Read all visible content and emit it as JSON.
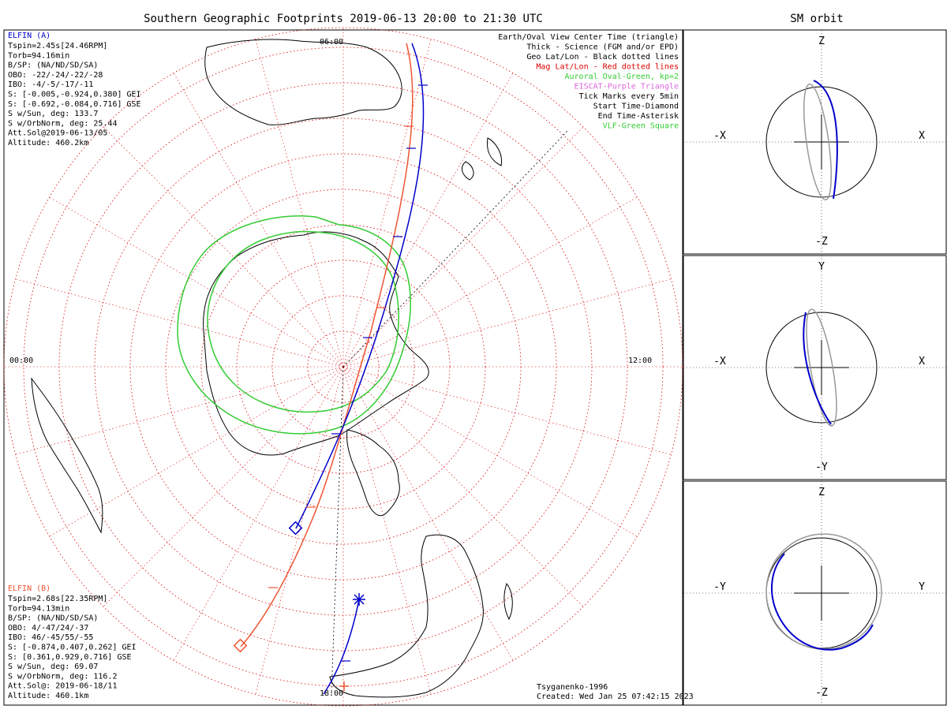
{
  "title": "Southern Geographic Footprints 2019-06-13 20:00 to 21:30 UTC",
  "right_title": "SM orbit",
  "map": {
    "mlt_labels": {
      "top": "06:00",
      "left": "00:00",
      "right": "12:00",
      "bottom": "18:00"
    }
  },
  "elfin_a": {
    "header": "ELFIN (A)",
    "lines": [
      "Tspin=2.45s[24.46RPM]",
      "Torb=94.16min",
      "B/SP: (NA/ND/SD/SA)",
      "OBO: -22/-24/-22/-28",
      "IBO: -4/-5/-17/-11",
      "S: [-0.005,-0.924,0.380] GEI",
      "S: [-0.692,-0.084,0.716] GSE",
      "S w/Sun, deg: 133.7",
      "S w/OrbNorm, deg: 25.44",
      "Att.Sol@2019-06-13/05",
      "Altitude: 460.2km"
    ],
    "color": "#0000cc"
  },
  "elfin_b": {
    "header": "ELFIN (B)",
    "lines": [
      "Tspin=2.68s[22.35RPM]",
      "Torb=94.13min",
      "B/SP: (NA/ND/SD/SA)",
      "OBO: 4/-47/24/-37",
      "IBO: 46/-45/55/-55",
      "S: [-0.874,0.407,0.262] GEI",
      "S: [0.361,0.929,0.716] GSE",
      "S w/Sun, deg: 69.07",
      "S w/OrbNorm, deg: 116.2",
      "Att.Sol@: 2019-06-18/11",
      "Altitude: 460.1km"
    ],
    "color": "#ee5533"
  },
  "legend": [
    {
      "text": "Earth/Oval View Center Time (triangle)",
      "color": "#000000"
    },
    {
      "text": "Thick - Science (FGM and/or EPD)",
      "color": "#000000"
    },
    {
      "text": "Geo Lat/Lon - Black dotted lines",
      "color": "#000000"
    },
    {
      "text": "Mag Lat/Lon - Red dotted lines",
      "color": "#dd0000"
    },
    {
      "text": "Auroral Oval-Green, kp=2",
      "color": "#33cc33"
    },
    {
      "text": "EISCAT-Purple Triangle",
      "color": "#dd66dd"
    },
    {
      "text": "Tick Marks every 5min",
      "color": "#000000"
    },
    {
      "text": "Start Time-Diamond",
      "color": "#000000"
    },
    {
      "text": "End Time-Asterisk",
      "color": "#000000"
    },
    {
      "text": "VLF-Green Square",
      "color": "#33cc33"
    }
  ],
  "footer": {
    "model": "Tsyganenko-1996",
    "created": "Created: Wed Jan 25 07:42:15 2023"
  },
  "panels": [
    {
      "top": "Z",
      "bottom": "-Z",
      "left": "-X",
      "right": "X"
    },
    {
      "top": "Y",
      "bottom": "-Y",
      "left": "-X",
      "right": "X"
    },
    {
      "top": "Z",
      "bottom": "-Z",
      "left": "-Y",
      "right": "Y"
    }
  ]
}
